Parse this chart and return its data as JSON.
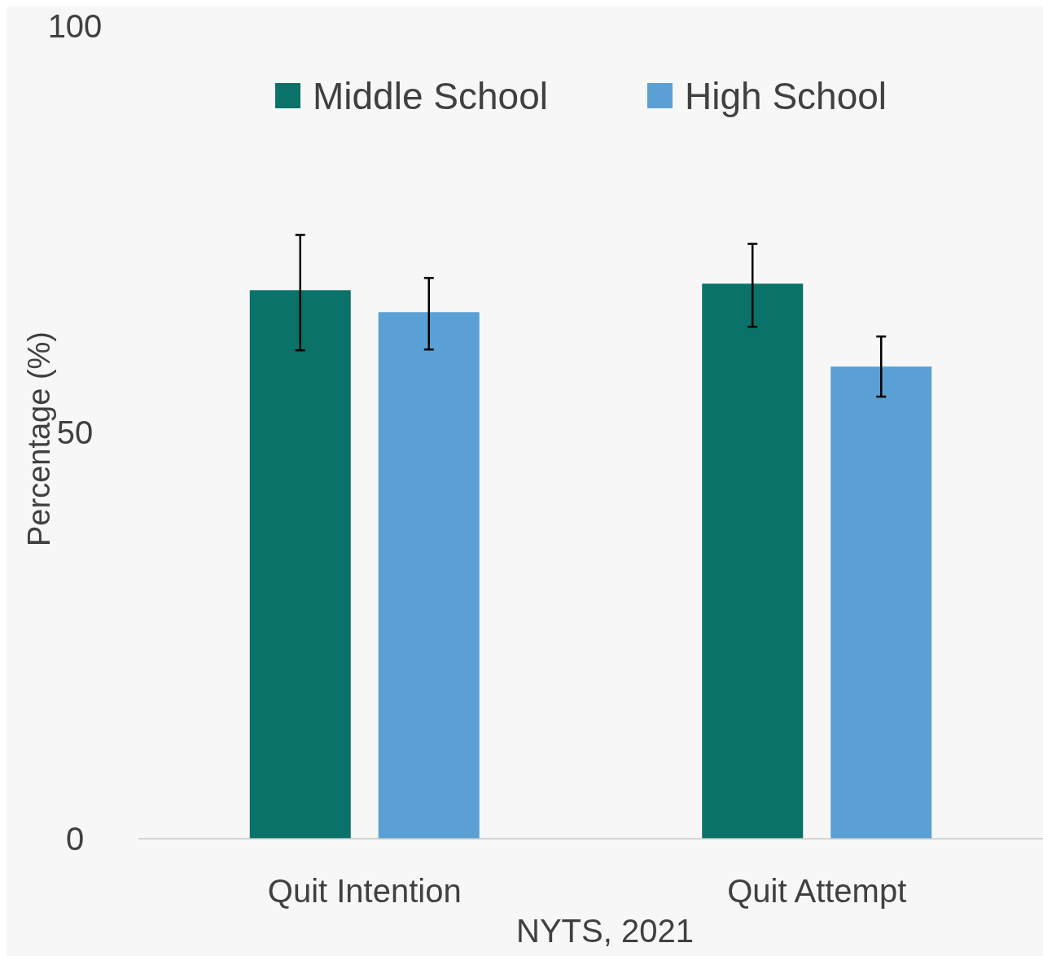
{
  "chart_data": {
    "type": "bar",
    "xlabel": "NYTS, 2021",
    "ylabel": "Percentage (%)",
    "categories": [
      "Quit Intention",
      "Quit Attempt"
    ],
    "series": [
      {
        "name": "Middle School",
        "color": "#0a7268",
        "values": [
          67.5,
          68.3
        ],
        "errors": [
          [
            60.1,
            74.3
          ],
          [
            63.0,
            73.2
          ]
        ]
      },
      {
        "name": "High School",
        "color": "#5aa0d4",
        "values": [
          64.8,
          58.1
        ],
        "errors": [
          [
            60.2,
            69.0
          ],
          [
            54.4,
            61.8
          ]
        ]
      }
    ],
    "ylim": [
      0,
      100
    ],
    "yticks": [
      0,
      50,
      100
    ],
    "grid": false,
    "legend": "top"
  }
}
